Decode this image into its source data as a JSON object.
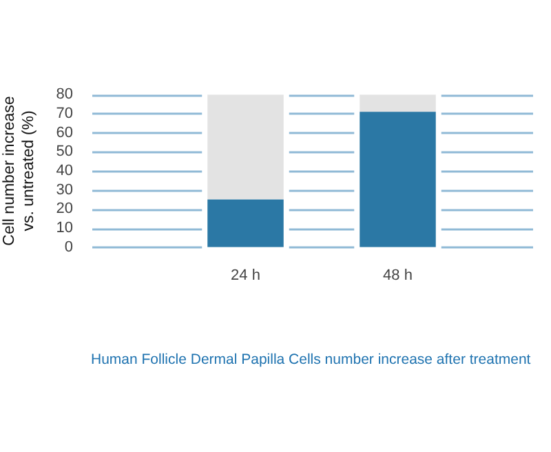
{
  "chart_data": {
    "type": "bar",
    "stacked": true,
    "ylabel": "Cell number increase\nvs. untreated (%)",
    "categories": [
      "24 h",
      "48 h"
    ],
    "series": [
      {
        "color": "#2b78a5",
        "values": [
          25,
          71
        ]
      },
      {
        "color": "#e3e3e3",
        "values": [
          55,
          9
        ]
      }
    ],
    "ylim": [
      0,
      80
    ],
    "yticks": [
      0,
      10,
      20,
      30,
      40,
      50,
      60,
      70,
      80
    ],
    "grid": "y",
    "legend": false,
    "annotations": [
      "Human Follicle Dermal Papilla Cells number increase after treatment"
    ]
  }
}
